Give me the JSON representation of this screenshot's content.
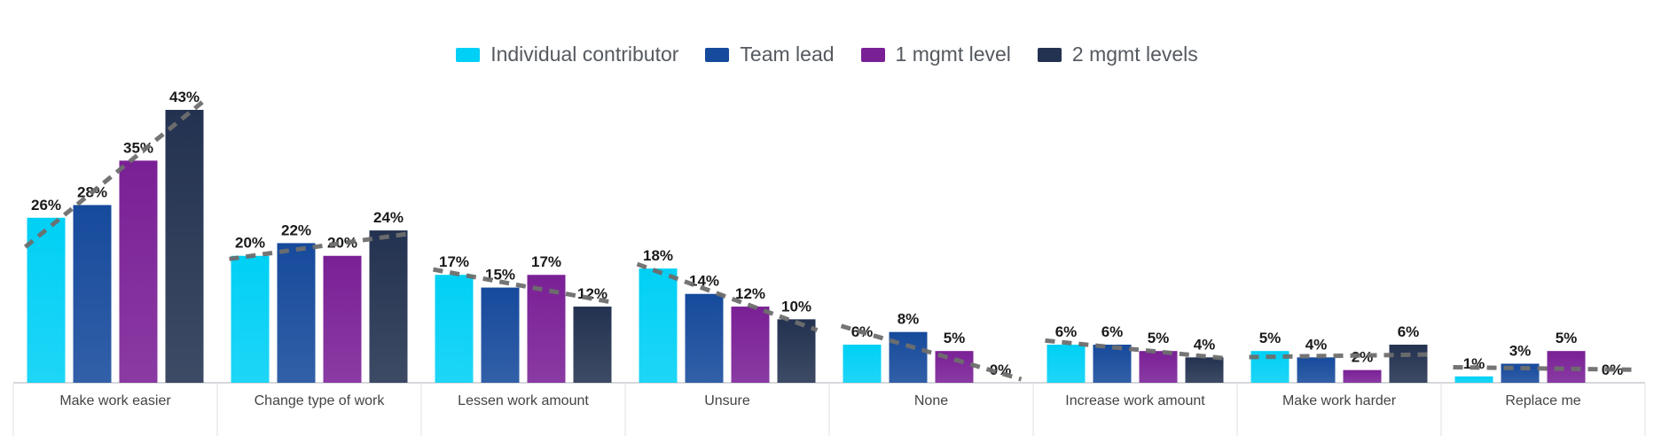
{
  "chart_data": {
    "type": "bar",
    "title": "",
    "xlabel": "",
    "ylabel": "",
    "ylim": [
      0,
      45
    ],
    "grid": false,
    "legend_position": "top-center",
    "value_suffix": "%",
    "categories": [
      "Make work easier",
      "Change type of work",
      "Lessen work amount",
      "Unsure",
      "None",
      "Increase work amount",
      "Make work harder",
      "Replace me"
    ],
    "series": [
      {
        "name": "Individual contributor",
        "color": "#00d0f5",
        "values": [
          26,
          20,
          17,
          18,
          6,
          6,
          5,
          1
        ]
      },
      {
        "name": "Team lead",
        "color": "#164a9c",
        "values": [
          28,
          22,
          15,
          14,
          8,
          6,
          4,
          3
        ]
      },
      {
        "name": "1 mgmt level",
        "color": "#7a2096",
        "values": [
          35,
          20,
          17,
          12,
          5,
          5,
          2,
          5
        ]
      },
      {
        "name": "2 mgmt levels",
        "color": "#233250",
        "values": [
          43,
          24,
          12,
          10,
          0,
          4,
          6,
          0
        ]
      }
    ],
    "trendline": {
      "style": "dashed",
      "color": "#6e6e6e"
    }
  }
}
